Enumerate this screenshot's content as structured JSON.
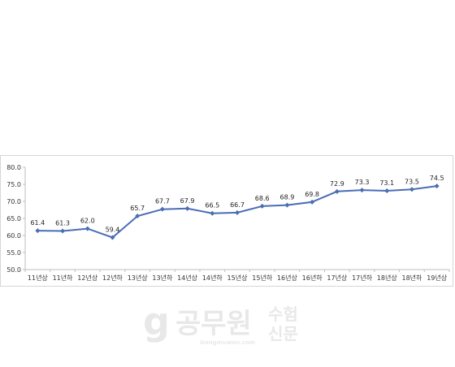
{
  "chart_data": {
    "type": "line",
    "categories": [
      "11년상",
      "11년하",
      "12년상",
      "12년하",
      "13년상",
      "13년하",
      "14년상",
      "14년하",
      "15년상",
      "15년하",
      "16년상",
      "16년하",
      "17년상",
      "17년하",
      "18년상",
      "18년하",
      "19년상"
    ],
    "series": [
      {
        "values": [
          61.4,
          61.3,
          62.0,
          59.4,
          65.7,
          67.7,
          67.9,
          66.5,
          66.7,
          68.6,
          68.9,
          69.8,
          72.9,
          73.3,
          73.1,
          73.5,
          74.5
        ]
      }
    ],
    "data_labels": [
      "61.4",
      "61.3",
      "62.0",
      "59.4",
      "65.7",
      "67.7",
      "67.9",
      "66.5",
      "66.7",
      "68.6",
      "68.9",
      "69.8",
      "72.9",
      "73.3",
      "73.1",
      "73.5",
      "74.5"
    ],
    "ylim": [
      50,
      80
    ],
    "yticks": [
      "50.0",
      "55.0",
      "60.0",
      "65.0",
      "70.0",
      "75.0",
      "80.0"
    ],
    "grid": false,
    "line_color": "#4a6db5"
  },
  "watermark": {
    "logo_text": "공무원수험신문",
    "sub_text": "Gongmuwon.com"
  }
}
